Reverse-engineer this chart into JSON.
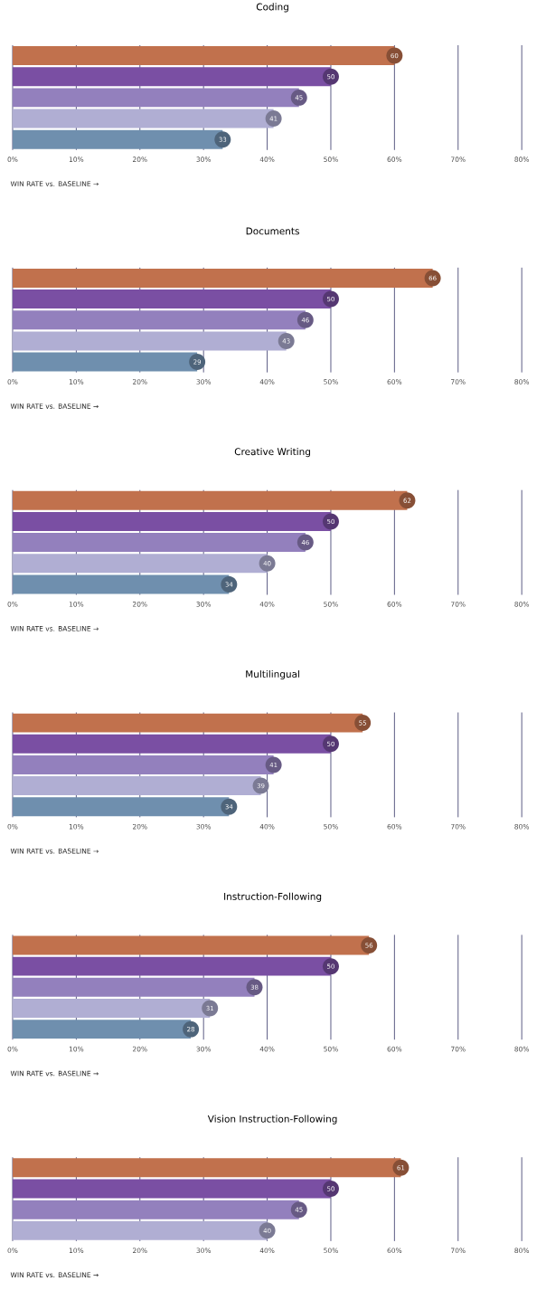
{
  "chart_data": [
    {
      "type": "bar",
      "orientation": "horizontal",
      "title": "Coding",
      "xlabel": "WIN RATE vs. BASELINE →",
      "categories": [
        null,
        null,
        null,
        null,
        null
      ],
      "values": [
        60,
        50,
        45,
        41,
        33
      ],
      "colors": [
        "#c1714d",
        "#7a4fa3",
        "#9380bd",
        "#b0aed3",
        "#6f8fae"
      ],
      "xlim": [
        0,
        80
      ],
      "xticks": [
        {
          "value": 0,
          "label": "0%"
        },
        {
          "value": 10,
          "label": "10%"
        },
        {
          "value": 20,
          "label": "20%"
        },
        {
          "value": 30,
          "label": "30%"
        },
        {
          "value": 40,
          "label": "40%"
        },
        {
          "value": 50,
          "label": "50%"
        },
        {
          "value": 60,
          "label": "60%"
        },
        {
          "value": 70,
          "label": "70%"
        },
        {
          "value": 80,
          "label": "80%"
        }
      ],
      "grid": "x",
      "data_labels": true,
      "tick_labels": "x"
    },
    {
      "type": "bar",
      "orientation": "horizontal",
      "title": "Documents",
      "xlabel": "WIN RATE vs. BASELINE →",
      "categories": [
        null,
        null,
        null,
        null,
        null
      ],
      "values": [
        66,
        50,
        46,
        43,
        29
      ],
      "colors": [
        "#c1714d",
        "#7a4fa3",
        "#9380bd",
        "#b0aed3",
        "#6f8fae"
      ],
      "xlim": [
        0,
        80
      ],
      "xticks": [
        {
          "value": 0,
          "label": "0%"
        },
        {
          "value": 10,
          "label": "10%"
        },
        {
          "value": 20,
          "label": "20%"
        },
        {
          "value": 30,
          "label": "30%"
        },
        {
          "value": 40,
          "label": "40%"
        },
        {
          "value": 50,
          "label": "50%"
        },
        {
          "value": 60,
          "label": "60%"
        },
        {
          "value": 70,
          "label": "70%"
        },
        {
          "value": 80,
          "label": "80%"
        }
      ],
      "grid": "x",
      "data_labels": true,
      "tick_labels": "x"
    },
    {
      "type": "bar",
      "orientation": "horizontal",
      "title": "Creative Writing",
      "xlabel": "WIN RATE vs. BASELINE →",
      "categories": [
        null,
        null,
        null,
        null,
        null
      ],
      "values": [
        62,
        50,
        46,
        40,
        34
      ],
      "colors": [
        "#c1714d",
        "#7a4fa3",
        "#9380bd",
        "#b0aed3",
        "#6f8fae"
      ],
      "xlim": [
        0,
        80
      ],
      "xticks": [
        {
          "value": 0,
          "label": "0%"
        },
        {
          "value": 10,
          "label": "10%"
        },
        {
          "value": 20,
          "label": "20%"
        },
        {
          "value": 30,
          "label": "30%"
        },
        {
          "value": 40,
          "label": "40%"
        },
        {
          "value": 50,
          "label": "50%"
        },
        {
          "value": 60,
          "label": "60%"
        },
        {
          "value": 70,
          "label": "70%"
        },
        {
          "value": 80,
          "label": "80%"
        }
      ],
      "grid": "x",
      "data_labels": true,
      "tick_labels": "x"
    },
    {
      "type": "bar",
      "orientation": "horizontal",
      "title": "Multilingual",
      "xlabel": "WIN RATE vs. BASELINE →",
      "categories": [
        null,
        null,
        null,
        null,
        null
      ],
      "values": [
        55,
        50,
        41,
        39,
        34
      ],
      "colors": [
        "#c1714d",
        "#7a4fa3",
        "#9380bd",
        "#b0aed3",
        "#6f8fae"
      ],
      "xlim": [
        0,
        80
      ],
      "xticks": [
        {
          "value": 0,
          "label": "0%"
        },
        {
          "value": 10,
          "label": "10%"
        },
        {
          "value": 20,
          "label": "20%"
        },
        {
          "value": 30,
          "label": "30%"
        },
        {
          "value": 40,
          "label": "40%"
        },
        {
          "value": 50,
          "label": "50%"
        },
        {
          "value": 60,
          "label": "60%"
        },
        {
          "value": 70,
          "label": "70%"
        },
        {
          "value": 80,
          "label": "80%"
        }
      ],
      "grid": "x",
      "data_labels": true,
      "tick_labels": "x"
    },
    {
      "type": "bar",
      "orientation": "horizontal",
      "title": "Instruction-Following",
      "xlabel": "WIN RATE vs. BASELINE →",
      "categories": [
        null,
        null,
        null,
        null,
        null
      ],
      "values": [
        56,
        50,
        38,
        31,
        28
      ],
      "colors": [
        "#c1714d",
        "#7a4fa3",
        "#9380bd",
        "#b0aed3",
        "#6f8fae"
      ],
      "xlim": [
        0,
        80
      ],
      "xticks": [
        {
          "value": 0,
          "label": "0%"
        },
        {
          "value": 10,
          "label": "10%"
        },
        {
          "value": 20,
          "label": "20%"
        },
        {
          "value": 30,
          "label": "30%"
        },
        {
          "value": 40,
          "label": "40%"
        },
        {
          "value": 50,
          "label": "50%"
        },
        {
          "value": 60,
          "label": "60%"
        },
        {
          "value": 70,
          "label": "70%"
        },
        {
          "value": 80,
          "label": "80%"
        }
      ],
      "grid": "x",
      "data_labels": true,
      "tick_labels": "x"
    },
    {
      "type": "bar",
      "orientation": "horizontal",
      "title": "Vision Instruction-Following",
      "xlabel": "WIN RATE vs. BASELINE →",
      "categories": [
        null,
        null,
        null,
        null
      ],
      "values": [
        61,
        50,
        45,
        40
      ],
      "colors": [
        "#c1714d",
        "#7a4fa3",
        "#9380bd",
        "#b0aed3"
      ],
      "xlim": [
        0,
        80
      ],
      "xticks": [
        {
          "value": 0,
          "label": "0%"
        },
        {
          "value": 10,
          "label": "10%"
        },
        {
          "value": 20,
          "label": "20%"
        },
        {
          "value": 30,
          "label": "30%"
        },
        {
          "value": 40,
          "label": "40%"
        },
        {
          "value": 50,
          "label": "50%"
        },
        {
          "value": 60,
          "label": "60%"
        },
        {
          "value": 70,
          "label": "70%"
        },
        {
          "value": 80,
          "label": "80%"
        }
      ],
      "grid": "x",
      "data_labels": true,
      "tick_labels": "x"
    }
  ]
}
